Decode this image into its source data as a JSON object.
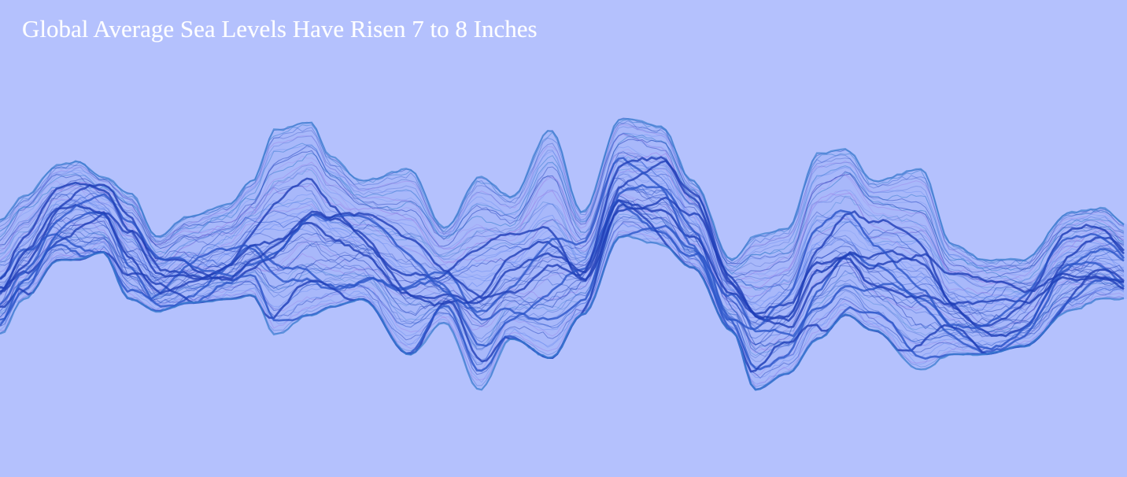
{
  "page": {
    "title": "Global Average Sea Levels Have Risen 7 to 8 Inches"
  },
  "art": {
    "description": "layered translucent blue sea-level wave lines",
    "background_color": "#b4c1fd",
    "stroke_colors": [
      "#1f3fb8",
      "#2b55c9",
      "#3a7fd0",
      "#6b8df0",
      "#9a7fe6"
    ],
    "fill_color": "#9fb0f7"
  }
}
